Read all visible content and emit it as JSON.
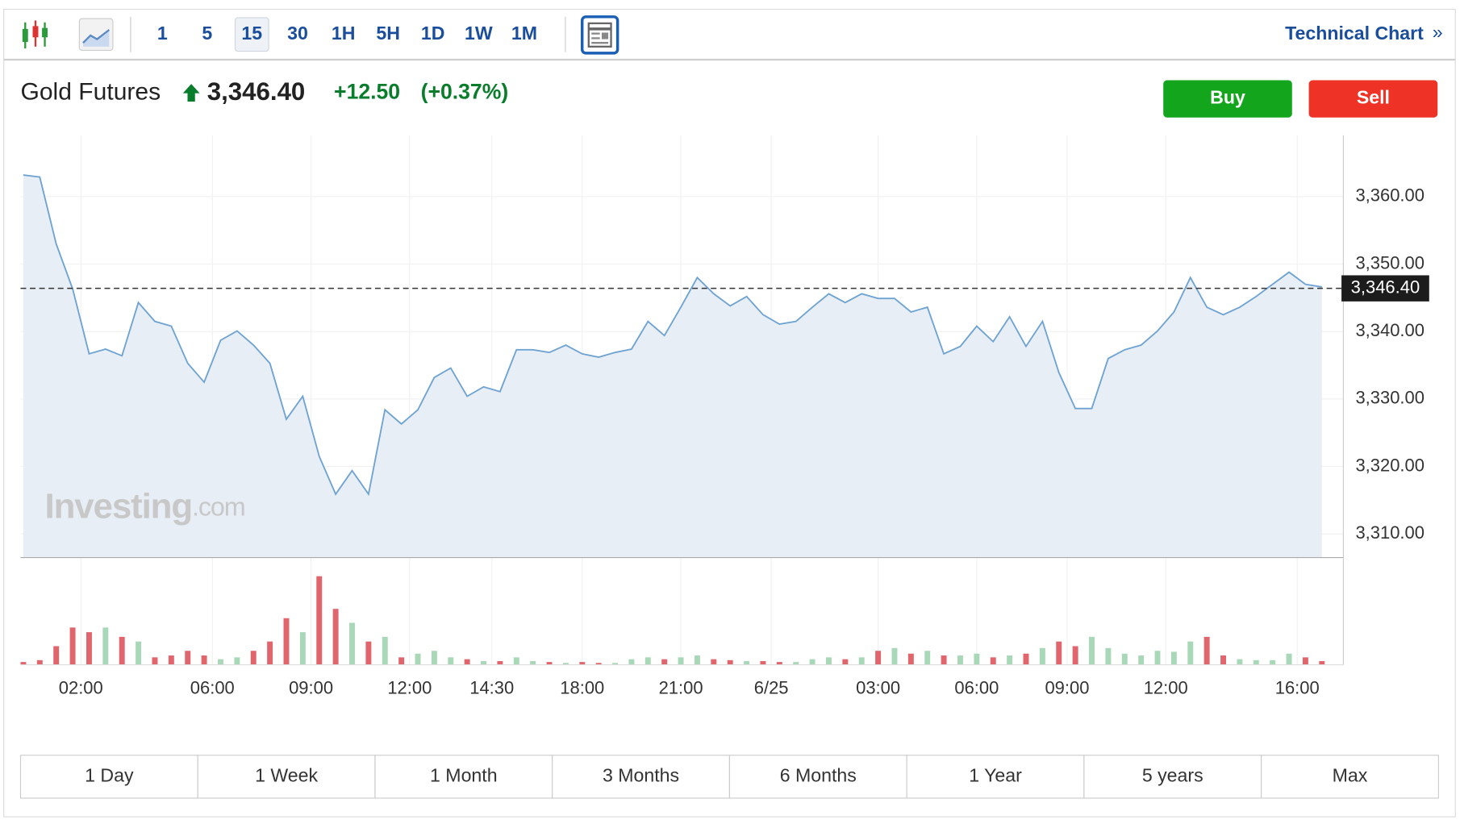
{
  "toolbar": {
    "intervals": [
      "1",
      "5",
      "15",
      "30",
      "1H",
      "5H",
      "1D",
      "1W",
      "1M"
    ],
    "active_interval": "15",
    "technical_chart": "Technical Chart",
    "chevron": "»"
  },
  "header": {
    "name": "Gold Futures",
    "price": "3,346.40",
    "change": "+12.50",
    "change_percent": "(+0.37%)"
  },
  "buttons": {
    "buy": "Buy",
    "sell": "Sell"
  },
  "watermark": {
    "brand": "Investing",
    "suffix": ".com"
  },
  "ranges": [
    "1 Day",
    "1 Week",
    "1 Month",
    "3 Months",
    "6 Months",
    "1 Year",
    "5 years",
    "Max"
  ],
  "chart_data": {
    "type": "line",
    "line_color": "#6fa3d2",
    "area_color": "#e8eef6",
    "grid": true,
    "x": [
      0,
      2,
      4,
      6,
      8,
      10,
      12,
      14,
      16,
      18,
      20,
      22,
      24,
      26,
      28,
      30,
      32,
      34,
      36,
      38,
      40,
      42,
      44,
      46,
      48,
      50,
      52,
      54,
      56,
      58,
      60,
      62,
      64,
      66,
      68,
      70,
      72,
      74,
      76,
      78,
      80,
      82,
      84,
      86,
      88,
      90,
      92,
      94,
      96,
      98,
      100,
      102,
      104,
      106,
      108,
      110,
      112,
      114,
      116,
      118,
      120,
      122,
      124,
      126,
      128,
      130,
      132,
      134,
      136,
      138,
      140,
      142,
      144,
      146,
      148,
      150,
      152,
      154,
      156,
      158
    ],
    "values": [
      3363.2,
      3362.9,
      3353.0,
      3346.3,
      3336.7,
      3337.4,
      3336.4,
      3344.3,
      3341.5,
      3340.8,
      3335.3,
      3332.5,
      3338.7,
      3340.1,
      3338.0,
      3335.3,
      3327.0,
      3330.4,
      3321.5,
      3315.9,
      3319.4,
      3315.9,
      3328.4,
      3326.3,
      3328.4,
      3333.2,
      3334.6,
      3330.4,
      3331.8,
      3331.1,
      3337.3,
      3337.3,
      3336.9,
      3338.0,
      3336.7,
      3336.2,
      3336.9,
      3337.4,
      3341.5,
      3339.4,
      3343.6,
      3348.0,
      3345.6,
      3343.8,
      3345.2,
      3342.5,
      3341.1,
      3341.5,
      3343.6,
      3345.6,
      3344.3,
      3345.6,
      3344.9,
      3344.9,
      3342.9,
      3343.6,
      3336.7,
      3337.8,
      3340.8,
      3338.5,
      3342.2,
      3337.8,
      3341.5,
      3333.9,
      3328.6,
      3328.6,
      3336.0,
      3337.3,
      3338.0,
      3340.1,
      3342.9,
      3348.0,
      3343.6,
      3342.5,
      3343.6,
      3345.2,
      3347.0,
      3348.8,
      3347.0,
      3346.6
    ],
    "volume": {
      "up_color": "#a9d8b8",
      "down_color": "#e0656d",
      "ylim": [
        0,
        100
      ],
      "values": [
        3,
        5,
        20,
        40,
        35,
        40,
        30,
        25,
        8,
        10,
        15,
        10,
        6,
        8,
        15,
        25,
        50,
        35,
        95,
        60,
        45,
        25,
        30,
        8,
        12,
        15,
        8,
        6,
        4,
        4,
        8,
        4,
        3,
        2,
        3,
        2,
        2,
        6,
        8,
        6,
        8,
        10,
        6,
        5,
        4,
        4,
        3,
        3,
        6,
        8,
        6,
        8,
        15,
        18,
        12,
        15,
        10,
        10,
        12,
        8,
        10,
        12,
        18,
        25,
        20,
        30,
        18,
        12,
        10,
        15,
        14,
        25,
        30,
        10,
        6,
        5,
        5,
        12,
        8,
        4
      ]
    },
    "xlim": [
      0,
      158
    ],
    "xticks": [
      {
        "value": 7,
        "label": "02:00"
      },
      {
        "value": 23,
        "label": "06:00"
      },
      {
        "value": 35,
        "label": "09:00"
      },
      {
        "value": 47,
        "label": "12:00"
      },
      {
        "value": 57,
        "label": "14:30"
      },
      {
        "value": 68,
        "label": "18:00"
      },
      {
        "value": 80,
        "label": "21:00"
      },
      {
        "value": 91,
        "label": "6/25"
      },
      {
        "value": 104,
        "label": "03:00"
      },
      {
        "value": 116,
        "label": "06:00"
      },
      {
        "value": 127,
        "label": "09:00"
      },
      {
        "value": 139,
        "label": "12:00"
      },
      {
        "value": 155,
        "label": "16:00"
      }
    ],
    "ylim": [
      3306.5,
      3369.1
    ],
    "yticks": [
      {
        "value": 3310,
        "label": "3,310.00"
      },
      {
        "value": 3320,
        "label": "3,320.00"
      },
      {
        "value": 3330,
        "label": "3,330.00"
      },
      {
        "value": 3340,
        "label": "3,340.00"
      },
      {
        "value": 3350,
        "label": "3,350.00"
      },
      {
        "value": 3360,
        "label": "3,360.00"
      }
    ],
    "last_price": {
      "value": 3346.4,
      "label": "3,346.40"
    }
  }
}
